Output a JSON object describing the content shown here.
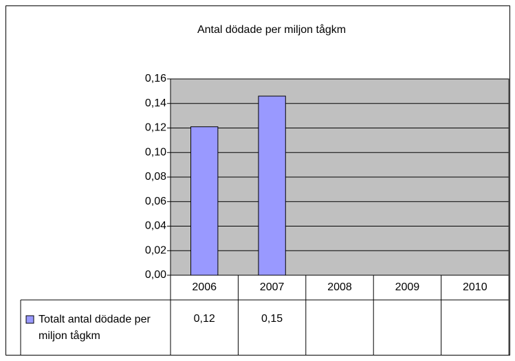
{
  "chart_data": {
    "type": "bar",
    "title": "Antal dödade per miljon tågkm",
    "categories": [
      "2006",
      "2007",
      "2008",
      "2009",
      "2010"
    ],
    "series": [
      {
        "name": "Totalt antal dödade per miljon tågkm",
        "color": "#9999ff",
        "values": [
          0.121,
          0.146,
          null,
          null,
          null
        ],
        "value_labels": [
          "0,12",
          "0,15",
          null,
          null,
          null
        ]
      }
    ],
    "ylim": [
      0,
      0.16
    ],
    "yticks": [
      {
        "value": 0,
        "label": "0,00"
      },
      {
        "value": 0.02,
        "label": "0,02"
      },
      {
        "value": 0.04,
        "label": "0,04"
      },
      {
        "value": 0.06,
        "label": "0,06"
      },
      {
        "value": 0.08,
        "label": "0,08"
      },
      {
        "value": 0.1,
        "label": "0,10"
      },
      {
        "value": 0.12,
        "label": "0,12"
      },
      {
        "value": 0.14,
        "label": "0,14"
      },
      {
        "value": 0.16,
        "label": "0,16"
      }
    ],
    "grid": true,
    "plot_background": "#c0c0c0"
  }
}
